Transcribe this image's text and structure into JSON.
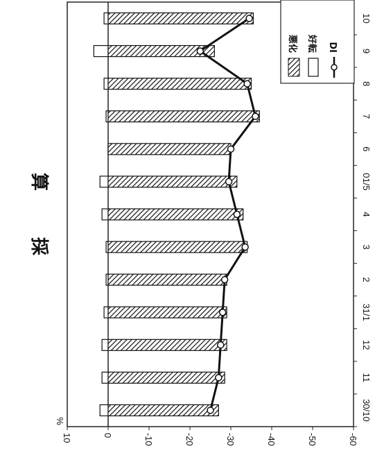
{
  "chart_data": {
    "type": "bar",
    "title": "採算",
    "ylabel": "%",
    "categories": [
      "30/10",
      "11",
      "12",
      "31/1",
      "2",
      "3",
      "4",
      "01/5",
      "6",
      "7",
      "8",
      "9",
      "10"
    ],
    "ylim": [
      -60,
      10
    ],
    "yticks": [
      10,
      0,
      -10,
      -20,
      -30,
      -40,
      -50,
      -60
    ],
    "series": [
      {
        "name": "悪化",
        "kind": "bar",
        "pattern": "hatched",
        "values": [
          -27,
          -28.5,
          -29,
          -29,
          -29,
          -34,
          -33,
          -31.5,
          -30,
          -37,
          -35,
          -26,
          -35.5
        ]
      },
      {
        "name": "好転",
        "kind": "bar",
        "pattern": "open",
        "values": [
          2,
          1.5,
          1.5,
          1,
          0.5,
          0.5,
          1.5,
          2,
          0,
          0.5,
          1,
          3.5,
          1
        ]
      },
      {
        "name": "DI",
        "kind": "line",
        "marker": "open-circle",
        "values": [
          -25,
          -27,
          -27.5,
          -28,
          -28.5,
          -33.5,
          -31.5,
          -29.5,
          -30,
          -36,
          -34,
          -22.5,
          -34.5
        ]
      }
    ],
    "legend": {
      "position": "top-right",
      "entries": [
        "悪化",
        "好転",
        "DI"
      ]
    },
    "grid": false,
    "orientation": "rotated-90-clockwise"
  }
}
